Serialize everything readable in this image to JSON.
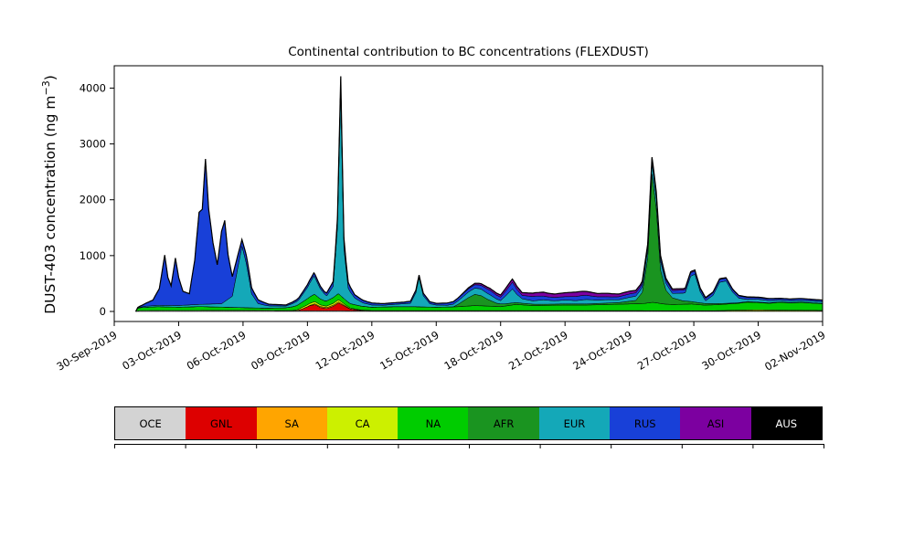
{
  "figure_title": "Continental contribution to BC concentrations (FLEXDUST)",
  "y_axis": {
    "label_main": "DUST-403 concentration (ng m",
    "label_sup": "−3",
    "label_close": ")"
  },
  "chart_data": {
    "type": "area",
    "stacked": true,
    "title": "Continental contribution to BC concentrations (FLEXDUST)",
    "xlabel": "",
    "ylabel": "DUST-403 concentration (ng m^-3)",
    "ylim": [
      -180,
      4400
    ],
    "yticks": [
      0,
      1000,
      2000,
      3000,
      4000
    ],
    "x_unit": "days since 30-Sep-2019",
    "x_domain_days": [
      0,
      33
    ],
    "xtick_days": [
      0,
      3,
      6,
      9,
      12,
      15,
      18,
      21,
      24,
      27,
      30,
      33
    ],
    "xtick_labels": [
      "30-Sep-2019",
      "03-Oct-2019",
      "06-Oct-2019",
      "09-Oct-2019",
      "12-Oct-2019",
      "15-Oct-2019",
      "18-Oct-2019",
      "21-Oct-2019",
      "24-Oct-2019",
      "27-Oct-2019",
      "30-Oct-2019",
      "02-Nov-2019"
    ],
    "outline_color": "#000000",
    "legend_position": "bottom",
    "series": [
      {
        "name": "OCE",
        "color": "#d3d3d3",
        "label_color": "#000000",
        "points": [
          [
            1,
            0
          ],
          [
            1.2,
            15
          ],
          [
            6.5,
            15
          ],
          [
            7.5,
            12
          ],
          [
            12,
            10
          ],
          [
            20,
            10
          ],
          [
            28,
            8
          ],
          [
            33,
            8
          ]
        ]
      },
      {
        "name": "GNL",
        "color": "#dd0000",
        "label_color": "#000000",
        "points": [
          [
            1,
            0
          ],
          [
            8.5,
            0
          ],
          [
            8.8,
            40
          ],
          [
            9.1,
            90
          ],
          [
            9.35,
            110
          ],
          [
            9.6,
            60
          ],
          [
            9.9,
            40
          ],
          [
            10.2,
            80
          ],
          [
            10.45,
            140
          ],
          [
            10.7,
            90
          ],
          [
            11,
            30
          ],
          [
            11.5,
            5
          ],
          [
            12,
            0
          ],
          [
            33,
            0
          ]
        ]
      },
      {
        "name": "SA",
        "color": "#ffa500",
        "label_color": "#000000",
        "points": [
          [
            1,
            0
          ],
          [
            9,
            0
          ],
          [
            9.3,
            15
          ],
          [
            10.5,
            20
          ],
          [
            11,
            5
          ],
          [
            12,
            0
          ],
          [
            33,
            0
          ]
        ]
      },
      {
        "name": "CA",
        "color": "#ccf000",
        "label_color": "#000000",
        "points": [
          [
            1,
            0
          ],
          [
            8.3,
            5
          ],
          [
            8.8,
            30
          ],
          [
            9.3,
            40
          ],
          [
            9.8,
            25
          ],
          [
            10.4,
            40
          ],
          [
            10.8,
            20
          ],
          [
            11.3,
            10
          ],
          [
            12,
            5
          ],
          [
            28,
            5
          ],
          [
            29,
            15
          ],
          [
            30,
            20
          ],
          [
            31,
            15
          ],
          [
            33,
            10
          ]
        ]
      },
      {
        "name": "NA",
        "color": "#00cc00",
        "label_color": "#000000",
        "points": [
          [
            1,
            0
          ],
          [
            1.1,
            50
          ],
          [
            2,
            70
          ],
          [
            3,
            60
          ],
          [
            4,
            70
          ],
          [
            5,
            60
          ],
          [
            6,
            50
          ],
          [
            7,
            40
          ],
          [
            8,
            50
          ],
          [
            8.7,
            90
          ],
          [
            9.3,
            130
          ],
          [
            9.8,
            90
          ],
          [
            10.4,
            110
          ],
          [
            10.9,
            80
          ],
          [
            11.5,
            70
          ],
          [
            12,
            60
          ],
          [
            13,
            70
          ],
          [
            14,
            70
          ],
          [
            15,
            60
          ],
          [
            16,
            70
          ],
          [
            16.8,
            90
          ],
          [
            17.5,
            80
          ],
          [
            18,
            70
          ],
          [
            18.7,
            110
          ],
          [
            19.5,
            90
          ],
          [
            21,
            100
          ],
          [
            22,
            100
          ],
          [
            23,
            110
          ],
          [
            24,
            120
          ],
          [
            24.7,
            130
          ],
          [
            25.1,
            150
          ],
          [
            25.6,
            120
          ],
          [
            26,
            110
          ],
          [
            26.9,
            120
          ],
          [
            27.5,
            100
          ],
          [
            28.3,
            110
          ],
          [
            29,
            120
          ],
          [
            29.5,
            140
          ],
          [
            30,
            130
          ],
          [
            30.5,
            120
          ],
          [
            31,
            140
          ],
          [
            31.5,
            130
          ],
          [
            32,
            140
          ],
          [
            32.5,
            130
          ],
          [
            33,
            120
          ]
        ]
      },
      {
        "name": "AFR",
        "color": "#1a9420",
        "label_color": "#000000",
        "points": [
          [
            1,
            0
          ],
          [
            15.8,
            0
          ],
          [
            16.1,
            60
          ],
          [
            16.5,
            150
          ],
          [
            16.8,
            200
          ],
          [
            17.1,
            180
          ],
          [
            17.4,
            120
          ],
          [
            17.8,
            60
          ],
          [
            18.2,
            40
          ],
          [
            19,
            30
          ],
          [
            20,
            20
          ],
          [
            22,
            20
          ],
          [
            23.5,
            30
          ],
          [
            24.3,
            60
          ],
          [
            24.6,
            200
          ],
          [
            24.85,
            800
          ],
          [
            25.05,
            2300
          ],
          [
            25.25,
            1700
          ],
          [
            25.45,
            600
          ],
          [
            25.7,
            250
          ],
          [
            26,
            120
          ],
          [
            26.5,
            60
          ],
          [
            27,
            40
          ],
          [
            28,
            20
          ],
          [
            29,
            10
          ],
          [
            33,
            5
          ]
        ]
      },
      {
        "name": "EUR",
        "color": "#14a8b8",
        "label_color": "#000000",
        "points": [
          [
            1,
            0
          ],
          [
            1.5,
            20
          ],
          [
            3,
            30
          ],
          [
            4,
            40
          ],
          [
            5,
            60
          ],
          [
            5.5,
            200
          ],
          [
            5.75,
            700
          ],
          [
            5.95,
            1100
          ],
          [
            6.15,
            800
          ],
          [
            6.4,
            250
          ],
          [
            6.7,
            80
          ],
          [
            7.2,
            40
          ],
          [
            8,
            30
          ],
          [
            8.6,
            80
          ],
          [
            9,
            200
          ],
          [
            9.3,
            330
          ],
          [
            9.6,
            180
          ],
          [
            9.9,
            90
          ],
          [
            10.2,
            200
          ],
          [
            10.4,
            1200
          ],
          [
            10.55,
            3650
          ],
          [
            10.7,
            900
          ],
          [
            10.9,
            250
          ],
          [
            11.2,
            120
          ],
          [
            11.6,
            60
          ],
          [
            12,
            40
          ],
          [
            12.5,
            30
          ],
          [
            13,
            40
          ],
          [
            13.8,
            60
          ],
          [
            14.05,
            250
          ],
          [
            14.2,
            520
          ],
          [
            14.4,
            200
          ],
          [
            14.7,
            60
          ],
          [
            15,
            40
          ],
          [
            15.5,
            30
          ],
          [
            16,
            60
          ],
          [
            16.5,
            100
          ],
          [
            17,
            120
          ],
          [
            17.5,
            100
          ],
          [
            18,
            60
          ],
          [
            18.55,
            250
          ],
          [
            18.75,
            150
          ],
          [
            19,
            80
          ],
          [
            19.5,
            60
          ],
          [
            20,
            80
          ],
          [
            20.5,
            60
          ],
          [
            21,
            70
          ],
          [
            21.5,
            60
          ],
          [
            22,
            80
          ],
          [
            22.5,
            60
          ],
          [
            23,
            60
          ],
          [
            23.5,
            50
          ],
          [
            24,
            70
          ],
          [
            24.5,
            80
          ],
          [
            25.1,
            200
          ],
          [
            25.5,
            150
          ],
          [
            26,
            80
          ],
          [
            26.6,
            150
          ],
          [
            26.85,
            450
          ],
          [
            27.05,
            500
          ],
          [
            27.3,
            200
          ],
          [
            27.55,
            50
          ],
          [
            27.9,
            150
          ],
          [
            28.2,
            380
          ],
          [
            28.5,
            400
          ],
          [
            28.8,
            200
          ],
          [
            29.1,
            80
          ],
          [
            29.5,
            40
          ],
          [
            30,
            50
          ],
          [
            30.5,
            40
          ],
          [
            31,
            30
          ],
          [
            33,
            30
          ]
        ]
      },
      {
        "name": "RUS",
        "color": "#1840d8",
        "label_color": "#000000",
        "points": [
          [
            1,
            0
          ],
          [
            1.3,
            30
          ],
          [
            1.8,
            100
          ],
          [
            2.1,
            300
          ],
          [
            2.35,
            900
          ],
          [
            2.5,
            500
          ],
          [
            2.65,
            350
          ],
          [
            2.85,
            850
          ],
          [
            3,
            500
          ],
          [
            3.2,
            250
          ],
          [
            3.5,
            200
          ],
          [
            3.75,
            800
          ],
          [
            3.95,
            1650
          ],
          [
            4.1,
            1700
          ],
          [
            4.25,
            2600
          ],
          [
            4.4,
            1700
          ],
          [
            4.6,
            1100
          ],
          [
            4.8,
            700
          ],
          [
            5,
            1300
          ],
          [
            5.15,
            1450
          ],
          [
            5.3,
            800
          ],
          [
            5.5,
            350
          ],
          [
            5.7,
            250
          ],
          [
            5.95,
            120
          ],
          [
            6.2,
            150
          ],
          [
            6.5,
            90
          ],
          [
            6.8,
            60
          ],
          [
            7.2,
            30
          ],
          [
            8,
            20
          ],
          [
            8.7,
            40
          ],
          [
            9.3,
            60
          ],
          [
            9.8,
            40
          ],
          [
            10.3,
            100
          ],
          [
            10.55,
            280
          ],
          [
            10.8,
            120
          ],
          [
            11.2,
            60
          ],
          [
            11.8,
            40
          ],
          [
            12.5,
            30
          ],
          [
            13.5,
            30
          ],
          [
            14.2,
            50
          ],
          [
            15,
            30
          ],
          [
            16,
            50
          ],
          [
            16.8,
            60
          ],
          [
            17.5,
            80
          ],
          [
            18,
            60
          ],
          [
            18.55,
            120
          ],
          [
            19,
            60
          ],
          [
            19.6,
            80
          ],
          [
            20.2,
            60
          ],
          [
            21,
            60
          ],
          [
            21.8,
            80
          ],
          [
            22.5,
            60
          ],
          [
            23.2,
            50
          ],
          [
            24,
            60
          ],
          [
            24.8,
            60
          ],
          [
            25.2,
            80
          ],
          [
            26,
            50
          ],
          [
            26.9,
            60
          ],
          [
            27.5,
            40
          ],
          [
            28.3,
            50
          ],
          [
            29,
            40
          ],
          [
            30,
            30
          ],
          [
            32,
            30
          ],
          [
            33,
            25
          ]
        ]
      },
      {
        "name": "ASI",
        "color": "#7c00a0",
        "label_color": "#000000",
        "points": [
          [
            1,
            0
          ],
          [
            16,
            0
          ],
          [
            16.5,
            20
          ],
          [
            17,
            30
          ],
          [
            18,
            40
          ],
          [
            18.5,
            60
          ],
          [
            19,
            50
          ],
          [
            19.5,
            60
          ],
          [
            20,
            70
          ],
          [
            20.5,
            60
          ],
          [
            21,
            70
          ],
          [
            21.5,
            80
          ],
          [
            22,
            70
          ],
          [
            22.5,
            60
          ],
          [
            23,
            60
          ],
          [
            23.5,
            50
          ],
          [
            24,
            50
          ],
          [
            24.5,
            40
          ],
          [
            25,
            40
          ],
          [
            25.5,
            30
          ],
          [
            26,
            30
          ],
          [
            27,
            20
          ],
          [
            28,
            15
          ],
          [
            29,
            10
          ],
          [
            30,
            10
          ],
          [
            31,
            5
          ],
          [
            33,
            5
          ]
        ]
      },
      {
        "name": "AUS",
        "color": "#000000",
        "label_color": "#ffffff",
        "points": [
          [
            1,
            0
          ],
          [
            33,
            0
          ]
        ]
      }
    ]
  }
}
